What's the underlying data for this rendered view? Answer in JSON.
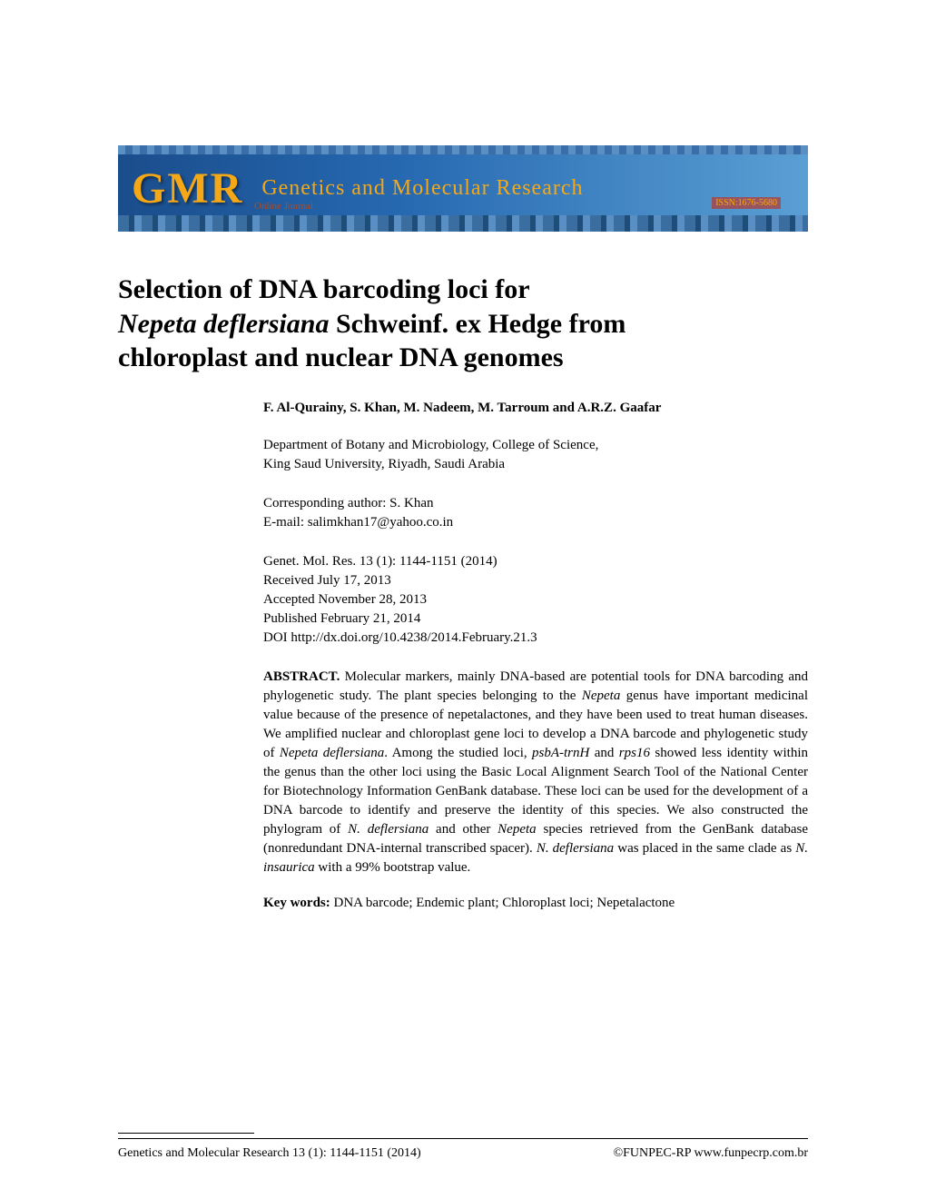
{
  "banner": {
    "logo_text": "GMR",
    "journal_name": "Genetics and Molecular Research",
    "online_label": "Online Journal",
    "issn": "ISSN:1676-5680",
    "colors": {
      "gradient_start": "#1a4d8c",
      "gradient_mid": "#2668b0",
      "gradient_end": "#5a9fd4",
      "text_color": "#f4a817"
    }
  },
  "title": {
    "line1": "Selection of DNA barcoding loci for",
    "species": "Nepeta deflersiana",
    "line2_rest": " Schweinf. ex Hedge from",
    "line3": "chloroplast and nuclear DNA genomes"
  },
  "authors": "F. Al-Qurainy, S. Khan, M. Nadeem, M. Tarroum and A.R.Z. Gaafar",
  "affiliation": {
    "line1": "Department of Botany and Microbiology, College of Science,",
    "line2": "King Saud University, Riyadh, Saudi Arabia"
  },
  "corresponding": {
    "line1": "Corresponding author: S. Khan",
    "line2": "E-mail: salimkhan17@yahoo.co.in"
  },
  "pub_info": {
    "citation": "Genet. Mol. Res. 13 (1): 1144-1151 (2014)",
    "received": "Received July 17, 2013",
    "accepted": "Accepted November 28, 2013",
    "published": "Published February 21, 2014",
    "doi": "DOI http://dx.doi.org/10.4238/2014.February.21.3"
  },
  "abstract": {
    "label": "ABSTRACT.",
    "text_part1": " Molecular markers, mainly DNA-based are potential tools for DNA barcoding and phylogenetic study. The plant species belonging to the ",
    "italic1": "Nepeta",
    "text_part2": " genus have important medicinal value because of the presence of nepetalactones, and they have been used to treat human diseases. We amplified nuclear and chloroplast gene loci to develop a DNA barcode and phylogenetic study of ",
    "italic2": "Nepeta deflersiana",
    "text_part3": ". Among the studied loci, ",
    "italic3": "psbA-trnH",
    "text_part4": " and ",
    "italic4": "rps16",
    "text_part5": " showed less identity within the genus than the other loci using the Basic Local Alignment Search Tool of the National Center for Biotechnology Information GenBank database. These loci can be used for the development of a DNA barcode to identify and preserve the identity of this species. We also constructed the phylogram of ",
    "italic5": "N. deflersiana",
    "text_part6": " and other ",
    "italic6": "Nepeta",
    "text_part7": " species retrieved from the GenBank database (nonredundant DNA-internal transcribed spacer). ",
    "italic7": "N. deflersiana",
    "text_part8": " was placed in the same clade as ",
    "italic8": "N. insaurica",
    "text_part9": " with a 99% bootstrap value."
  },
  "keywords": {
    "label": "Key words:",
    "text": " DNA barcode; Endemic plant; Chloroplast loci; Nepetalactone"
  },
  "footer": {
    "left": "Genetics and Molecular Research 13 (1): 1144-1151 (2014)",
    "right": "©FUNPEC-RP www.funpecrp.com.br"
  },
  "typography": {
    "title_fontsize": 30,
    "body_fontsize": 15,
    "footer_fontsize": 14,
    "font_family": "Times New Roman"
  }
}
